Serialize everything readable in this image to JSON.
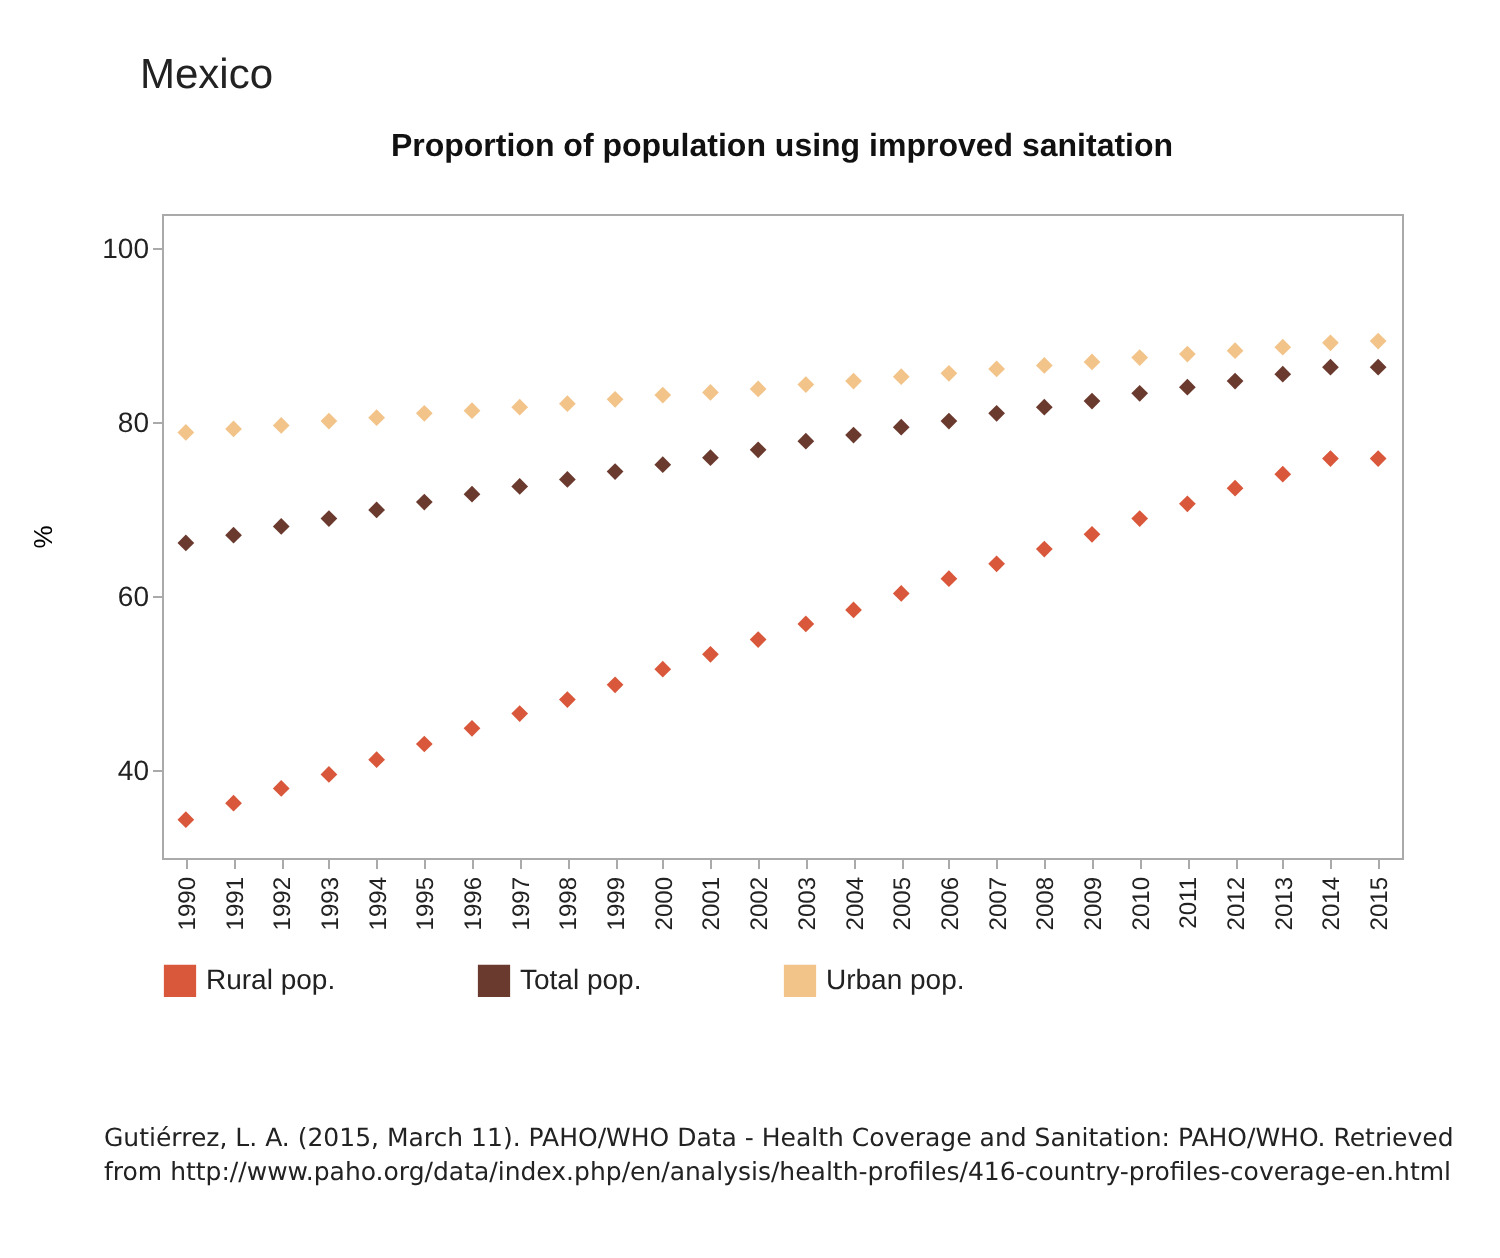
{
  "chart_data": {
    "type": "scatter",
    "title": "Mexico",
    "subtitle": "Proportion of population using improved sanitation",
    "ylabel": "%",
    "categories": [
      "1990",
      "1991",
      "1992",
      "1993",
      "1994",
      "1995",
      "1996",
      "1997",
      "1998",
      "1999",
      "2000",
      "2001",
      "2002",
      "2003",
      "2004",
      "2005",
      "2006",
      "2007",
      "2008",
      "2009",
      "2010",
      "2011",
      "2012",
      "2013",
      "2014",
      "2015"
    ],
    "series": [
      {
        "name": "Rural pop.",
        "color": "#d9573a",
        "values": [
          34.4,
          36.3,
          38.0,
          39.6,
          41.3,
          43.1,
          44.9,
          46.6,
          48.2,
          49.9,
          51.7,
          53.4,
          55.1,
          56.9,
          58.5,
          60.4,
          62.1,
          63.8,
          65.5,
          67.2,
          69.0,
          70.7,
          72.5,
          74.1,
          75.9,
          75.9
        ]
      },
      {
        "name": "Total pop.",
        "color": "#6b3a2e",
        "values": [
          66.2,
          67.1,
          68.1,
          69.0,
          70.0,
          70.9,
          71.8,
          72.7,
          73.5,
          74.4,
          75.2,
          76.0,
          76.9,
          77.9,
          78.6,
          79.5,
          80.2,
          81.1,
          81.8,
          82.5,
          83.4,
          84.1,
          84.8,
          85.6,
          86.4,
          86.4
        ]
      },
      {
        "name": "Urban pop.",
        "color": "#f2c48a",
        "values": [
          78.9,
          79.3,
          79.7,
          80.2,
          80.6,
          81.1,
          81.4,
          81.8,
          82.2,
          82.7,
          83.2,
          83.5,
          83.9,
          84.4,
          84.8,
          85.3,
          85.7,
          86.2,
          86.6,
          87.0,
          87.5,
          87.9,
          88.3,
          88.7,
          89.2,
          89.4
        ]
      }
    ],
    "ylim": [
      30,
      104
    ],
    "yticks": [
      40,
      60,
      80,
      100
    ],
    "grid": false,
    "legend": "bottom",
    "marker": "diamond",
    "annotations": [
      "Gutiérrez, L. A. (2015, March 11). PAHO/WHO Data - Health Coverage and Sanitation: PAHO/WHO. Retrieved from http://www.paho.org/data/index.php/en/analysis/health-profiles/416-country-profiles-coverage-en.html"
    ]
  }
}
